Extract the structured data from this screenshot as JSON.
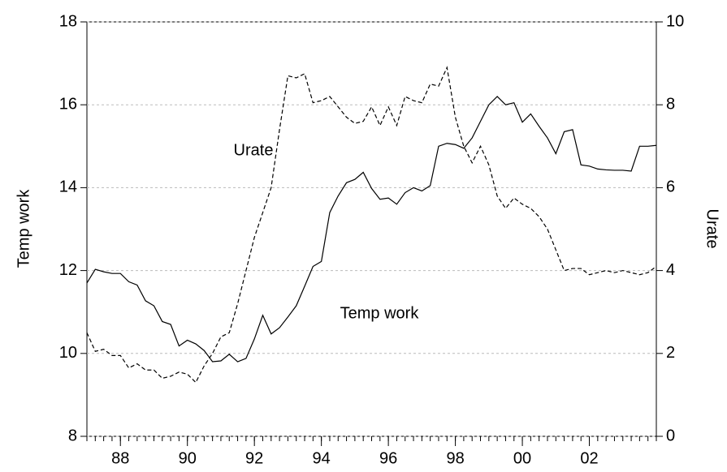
{
  "chart_data": {
    "type": "line",
    "ylabel": "Temp work",
    "y2label": "Urate",
    "annotations": [
      "Urate",
      "Temp work"
    ],
    "x": [
      1987,
      1987.25,
      1987.5,
      1987.75,
      1988,
      1988.25,
      1988.5,
      1988.75,
      1989,
      1989.25,
      1989.5,
      1989.75,
      1990,
      1990.25,
      1990.5,
      1990.75,
      1991,
      1991.25,
      1991.5,
      1991.75,
      1992,
      1992.25,
      1992.5,
      1992.75,
      1993,
      1993.25,
      1993.5,
      1993.75,
      1994,
      1994.25,
      1994.5,
      1994.75,
      1995,
      1995.25,
      1995.5,
      1995.75,
      1996,
      1996.25,
      1996.5,
      1996.75,
      1997,
      1997.25,
      1997.5,
      1997.75,
      1998,
      1998.25,
      1998.5,
      1998.75,
      1999,
      1999.25,
      1999.5,
      1999.75,
      2000,
      2000.25,
      2000.5,
      2000.75,
      2001,
      2001.25,
      2001.5,
      2001.75,
      2002,
      2002.25,
      2002.5,
      2002.75,
      2003,
      2003.25,
      2003.5,
      2003.75,
      2004
    ],
    "series": [
      {
        "name": "Temp work",
        "color": "#000000",
        "style": "solid",
        "values": [
          11.7,
          12.03,
          11.97,
          11.93,
          11.93,
          11.73,
          11.65,
          11.27,
          11.15,
          10.77,
          10.7,
          10.18,
          10.32,
          10.23,
          10.07,
          9.8,
          9.82,
          9.98,
          9.8,
          9.88,
          10.35,
          10.92,
          10.47,
          10.62,
          10.88,
          11.15,
          11.62,
          12.1,
          12.22,
          13.4,
          13.8,
          14.12,
          14.2,
          14.37,
          13.98,
          13.72,
          13.75,
          13.6,
          13.88,
          14.0,
          13.92,
          14.05,
          15.0,
          15.07,
          15.04,
          14.95,
          15.2,
          15.6,
          16.0,
          16.2,
          16.0,
          16.05,
          15.58,
          15.78,
          15.48,
          15.2,
          14.82,
          15.35,
          15.4,
          14.55,
          14.52,
          14.45,
          14.43,
          14.42,
          14.42,
          14.4,
          15.0,
          15.0,
          15.02
        ]
      },
      {
        "name": "Urate",
        "color": "#000000",
        "style": "dashed",
        "axis": "y2",
        "values": [
          2.5,
          2.05,
          2.1,
          1.95,
          1.95,
          1.65,
          1.75,
          1.6,
          1.6,
          1.4,
          1.45,
          1.55,
          1.5,
          1.3,
          1.7,
          2.0,
          2.4,
          2.5,
          3.2,
          4.0,
          4.8,
          5.4,
          6.0,
          7.4,
          8.7,
          8.65,
          8.75,
          8.05,
          8.1,
          8.2,
          7.95,
          7.7,
          7.55,
          7.6,
          7.95,
          7.5,
          7.95,
          7.5,
          8.2,
          8.1,
          8.05,
          8.5,
          8.45,
          8.9,
          7.7,
          7.0,
          6.6,
          7.0,
          6.55,
          5.8,
          5.5,
          5.75,
          5.6,
          5.5,
          5.3,
          5.0,
          4.5,
          4.0,
          4.05,
          4.05,
          3.9,
          3.95,
          4.0,
          3.95,
          4.0,
          3.95,
          3.9,
          3.95,
          4.1
        ]
      }
    ],
    "xlim": [
      1987,
      2004
    ],
    "xticks": [
      {
        "value": 1988,
        "label": "88"
      },
      {
        "value": 1990,
        "label": "90"
      },
      {
        "value": 1992,
        "label": "92"
      },
      {
        "value": 1994,
        "label": "94"
      },
      {
        "value": 1996,
        "label": "96"
      },
      {
        "value": 1998,
        "label": "98"
      },
      {
        "value": 2000,
        "label": "00"
      },
      {
        "value": 2002,
        "label": "02"
      }
    ],
    "ylim": [
      8,
      18
    ],
    "yticks": [
      8,
      10,
      12,
      14,
      16,
      18
    ],
    "y2lim": [
      0,
      10
    ],
    "y2ticks": [
      0,
      2,
      4,
      6,
      8,
      10
    ],
    "grid": true
  }
}
